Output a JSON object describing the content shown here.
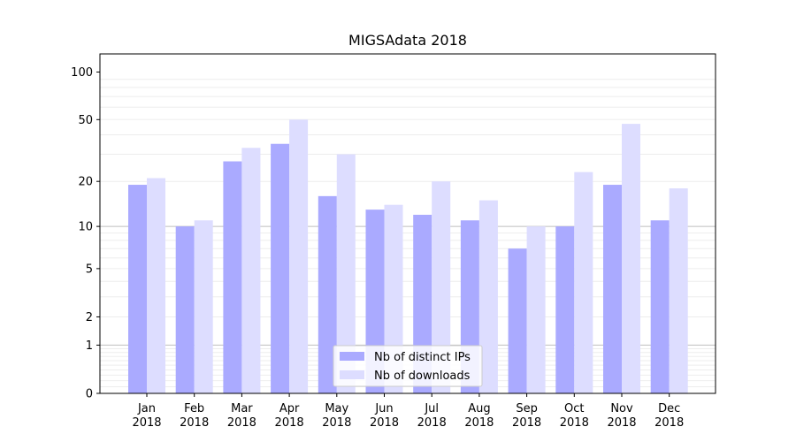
{
  "chart_data": {
    "type": "bar",
    "title": "MIGSAdata 2018",
    "xlabel": "",
    "ylabel": "",
    "yscale": "symlog",
    "ylim": [
      0,
      130
    ],
    "y_ticks": [
      0,
      1,
      2,
      5,
      10,
      20,
      50,
      100
    ],
    "y_tick_labels": [
      "0",
      "1",
      "2",
      "5",
      "10",
      "20",
      "50",
      "100"
    ],
    "major_gridlines": [
      1,
      10
    ],
    "categories": [
      {
        "month": "Jan",
        "year": "2018"
      },
      {
        "month": "Feb",
        "year": "2018"
      },
      {
        "month": "Mar",
        "year": "2018"
      },
      {
        "month": "Apr",
        "year": "2018"
      },
      {
        "month": "May",
        "year": "2018"
      },
      {
        "month": "Jun",
        "year": "2018"
      },
      {
        "month": "Jul",
        "year": "2018"
      },
      {
        "month": "Aug",
        "year": "2018"
      },
      {
        "month": "Sep",
        "year": "2018"
      },
      {
        "month": "Oct",
        "year": "2018"
      },
      {
        "month": "Nov",
        "year": "2018"
      },
      {
        "month": "Dec",
        "year": "2018"
      }
    ],
    "series": [
      {
        "name": "Nb of distinct IPs",
        "color": "#aaaaff",
        "values": [
          19,
          10,
          27,
          35,
          16,
          13,
          12,
          11,
          7,
          10,
          19,
          11
        ]
      },
      {
        "name": "Nb of downloads",
        "color": "#ddddff",
        "values": [
          21,
          11,
          33,
          50,
          30,
          14,
          20,
          15,
          10,
          23,
          47,
          18
        ]
      }
    ],
    "legend_position": "lower center"
  }
}
